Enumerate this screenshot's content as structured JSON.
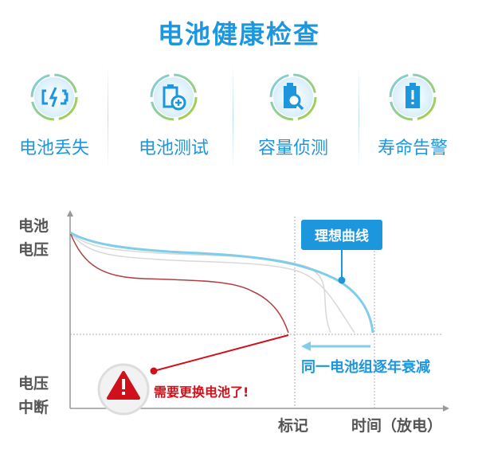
{
  "title": "电池健康检查",
  "features": [
    {
      "label": "电池丢失",
      "icon": "battery-charging-icon"
    },
    {
      "label": "电池测试",
      "icon": "battery-plus-icon"
    },
    {
      "label": "容量侦测",
      "icon": "battery-search-icon"
    },
    {
      "label": "寿命告警",
      "icon": "battery-warning-icon"
    }
  ],
  "diagram": {
    "y_label_top": [
      "电池",
      "电压"
    ],
    "y_label_bottom": [
      "电压",
      "中断"
    ],
    "x_label_mark": "标记",
    "x_label_time": "时间（放电）",
    "ideal_curve_label": "理想曲线",
    "decline_label": "同一电池组逐年衰减",
    "replace_label": "需要更换电池了!",
    "colors": {
      "ideal": "#7fcde8",
      "accent": "#1c97de",
      "warning": "#d0111b",
      "aging": "#d4d4d4",
      "axis": "#999999"
    }
  }
}
